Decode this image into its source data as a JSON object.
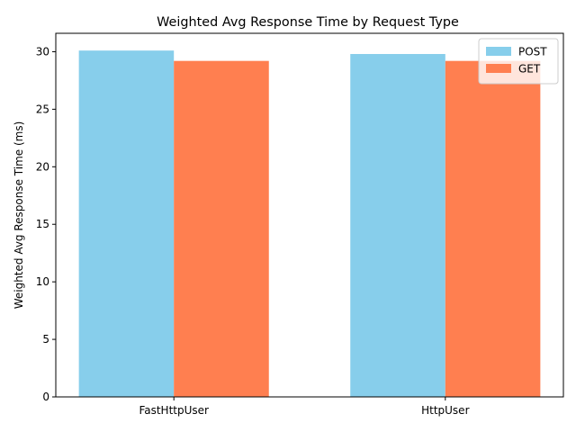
{
  "chart_data": {
    "type": "bar",
    "title": "Weighted Avg Response Time by Request Type",
    "xlabel": "",
    "ylabel": "Weighted Avg Response Time (ms)",
    "categories": [
      "FastHttpUser",
      "HttpUser"
    ],
    "series": [
      {
        "name": "POST",
        "values": [
          30.1,
          29.8
        ],
        "color": "#87CEEB"
      },
      {
        "name": "GET",
        "values": [
          29.2,
          29.2
        ],
        "color": "#FF7F50"
      }
    ],
    "ylim": [
      0,
      31.6
    ],
    "yticks": [
      0,
      5,
      10,
      15,
      20,
      25,
      30
    ],
    "grid": false,
    "legend": "top-right"
  }
}
